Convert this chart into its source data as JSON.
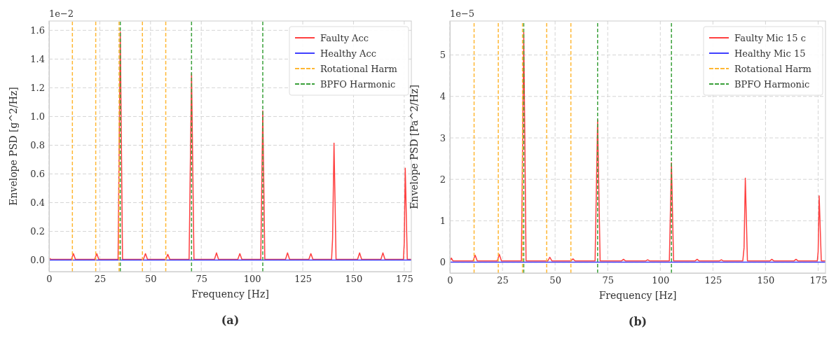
{
  "chart_data": [
    {
      "type": "line",
      "xlabel": "Frequency [Hz]",
      "ylabel": "Envelope PSD [g^2/Hz]",
      "annotations": [
        "1e−2",
        "(a)"
      ],
      "xlim": [
        0,
        178.5
      ],
      "xticks": [
        0,
        25,
        50,
        75,
        100,
        125,
        150,
        175
      ],
      "ylim": [
        -0.08,
        1.665
      ],
      "yticks": [
        {
          "value": 0,
          "label": "0.0"
        },
        0.2,
        0.4,
        0.6,
        0.8,
        {
          "value": 1,
          "label": "1.0"
        },
        1.2,
        1.4,
        1.6
      ],
      "grid": true,
      "legend": "top right",
      "line_style": "solid",
      "series": [
        {
          "name": "Faulty Acc",
          "color": "#ff4040",
          "x": [
            0,
            1,
            11,
            12,
            13,
            22.5,
            23.5,
            24.5,
            34,
            35.1,
            36.2,
            46.5,
            47.5,
            48.5,
            57.5,
            58.5,
            59.5,
            69,
            70.2,
            71.4,
            81.5,
            82.5,
            83.5,
            93,
            94,
            95,
            104.3,
            105.3,
            106.3,
            116.5,
            117.5,
            118.5,
            128,
            129,
            130,
            139.2,
            139.7,
            140.4,
            141.4,
            152,
            153,
            154,
            163.5,
            164.5,
            165.5,
            174.6,
            175,
            175.5,
            176.5,
            178.5
          ],
          "values": [
            0.015,
            0.005,
            0.005,
            0.045,
            0.005,
            0.005,
            0.045,
            0.005,
            0.005,
            1.59,
            0.005,
            0.005,
            0.045,
            0.005,
            0.005,
            0.04,
            0.005,
            0.005,
            1.3,
            0.005,
            0.005,
            0.05,
            0.005,
            0.005,
            0.045,
            0.005,
            0.005,
            1.04,
            0.005,
            0.005,
            0.05,
            0.005,
            0.005,
            0.045,
            0.005,
            0.005,
            0.15,
            0.815,
            0.005,
            0.005,
            0.05,
            0.005,
            0.005,
            0.05,
            0.005,
            0.005,
            0.12,
            0.64,
            0.005,
            0.005
          ]
        },
        {
          "name": "Healthy Acc",
          "color": "#4040ff",
          "x": [
            0,
            178.5
          ],
          "values": [
            0,
            0
          ]
        },
        {
          "name": "Rotational Harm",
          "color": "#ffb733",
          "line_style": "dashed",
          "x": [
            11.5,
            11.5
          ],
          "values": [
            -0.08,
            1.665
          ]
        },
        {
          "name": "BPFO Harmonic",
          "color": "#3aa03a",
          "line_style": "dashed",
          "x": [
            35.1,
            35.1
          ],
          "values": [
            -0.08,
            1.665
          ]
        },
        {
          "color": "#ffb733",
          "line_style": "dashed",
          "x": [
            23,
            23
          ],
          "values": [
            -0.08,
            1.665
          ]
        },
        {
          "color": "#ffb733",
          "line_style": "dashed",
          "x": [
            34.5,
            34.5
          ],
          "values": [
            -0.08,
            1.665
          ]
        },
        {
          "color": "#ffb733",
          "line_style": "dashed",
          "x": [
            46,
            46
          ],
          "values": [
            -0.08,
            1.665
          ]
        },
        {
          "color": "#ffb733",
          "line_style": "dashed",
          "x": [
            57.5,
            57.5
          ],
          "values": [
            -0.08,
            1.665
          ]
        },
        {
          "color": "#3aa03a",
          "line_style": "dashed",
          "x": [
            70.2,
            70.2
          ],
          "values": [
            -0.08,
            1.665
          ]
        },
        {
          "color": "#3aa03a",
          "line_style": "dashed",
          "x": [
            105.3,
            105.3
          ],
          "values": [
            -0.08,
            1.665
          ]
        }
      ]
    },
    {
      "type": "line",
      "xlabel": "Frequency [Hz]",
      "ylabel": "Envelope PSD [Pa^2/Hz]",
      "annotations": [
        "1e−5",
        "(b)"
      ],
      "xlim": [
        0,
        178.5
      ],
      "xticks": [
        0,
        25,
        50,
        75,
        100,
        125,
        150,
        175
      ],
      "ylim": [
        -0.26,
        5.82
      ],
      "yticks": [
        0,
        1,
        2,
        3,
        4,
        5
      ],
      "grid": true,
      "legend": "top right",
      "line_style": "solid",
      "series": [
        {
          "name": "Faulty Mic 15 c",
          "color": "#ff4040",
          "x": [
            0,
            0.7,
            1.5,
            11,
            12,
            13,
            22.5,
            23.5,
            24.5,
            34,
            35.1,
            36.2,
            46.5,
            47.5,
            48.5,
            57.5,
            58.5,
            59.5,
            69,
            70.2,
            71.4,
            81.5,
            82.5,
            83.5,
            93,
            94,
            95,
            104.3,
            105.3,
            106.3,
            116.5,
            117.5,
            118.5,
            128,
            129,
            130,
            139.2,
            139.8,
            140.4,
            141.4,
            152,
            153,
            154,
            163.5,
            164.5,
            165.5,
            174.6,
            175,
            175.5,
            176.5,
            178.5
          ],
          "values": [
            0.03,
            0.1,
            0.03,
            0.03,
            0.17,
            0.03,
            0.03,
            0.19,
            0.03,
            0.03,
            5.55,
            0.03,
            0.03,
            0.12,
            0.03,
            0.03,
            0.08,
            0.03,
            0.03,
            3.43,
            0.03,
            0.03,
            0.07,
            0.03,
            0.03,
            0.06,
            0.03,
            0.03,
            2.4,
            0.03,
            0.03,
            0.07,
            0.03,
            0.03,
            0.06,
            0.03,
            0.03,
            0.35,
            2.03,
            0.03,
            0.03,
            0.07,
            0.03,
            0.03,
            0.07,
            0.03,
            0.03,
            0.25,
            1.6,
            0.03,
            0.03
          ]
        },
        {
          "name": "Healthy Mic 15",
          "color": "#4040ff",
          "x": [
            0,
            178.5
          ],
          "values": [
            0,
            0
          ]
        },
        {
          "name": "Rotational Harm",
          "color": "#ffb733",
          "line_style": "dashed",
          "x": [
            11.5,
            11.5
          ],
          "values": [
            -0.26,
            5.82
          ]
        },
        {
          "name": "BPFO Harmonic",
          "color": "#3aa03a",
          "line_style": "dashed",
          "x": [
            35.1,
            35.1
          ],
          "values": [
            -0.26,
            5.82
          ]
        },
        {
          "color": "#ffb733",
          "line_style": "dashed",
          "x": [
            23,
            23
          ],
          "values": [
            -0.26,
            5.82
          ]
        },
        {
          "color": "#ffb733",
          "line_style": "dashed",
          "x": [
            34.5,
            34.5
          ],
          "values": [
            -0.26,
            5.82
          ]
        },
        {
          "color": "#ffb733",
          "line_style": "dashed",
          "x": [
            46,
            46
          ],
          "values": [
            -0.26,
            5.82
          ]
        },
        {
          "color": "#ffb733",
          "line_style": "dashed",
          "x": [
            57.5,
            57.5
          ],
          "values": [
            -0.26,
            5.82
          ]
        },
        {
          "color": "#3aa03a",
          "line_style": "dashed",
          "x": [
            70.2,
            70.2
          ],
          "values": [
            -0.26,
            5.82
          ]
        },
        {
          "color": "#3aa03a",
          "line_style": "dashed",
          "x": [
            105.3,
            105.3
          ],
          "values": [
            -0.26,
            5.82
          ]
        }
      ]
    }
  ]
}
